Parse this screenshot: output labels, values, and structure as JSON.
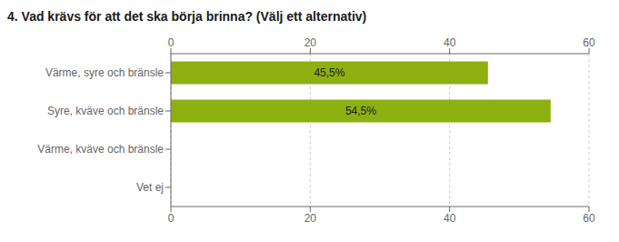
{
  "chart_data": {
    "type": "bar",
    "title": "4. Vad krävs för att det ska börja brinna? (Välj ett alternativ)",
    "orientation": "horizontal",
    "categories": [
      "Värme, syre och bränsle",
      "Syre, kväve och bränsle",
      "Värme, kväve och bränsle",
      "Vet ej"
    ],
    "values": [
      45.5,
      54.5,
      0,
      0
    ],
    "value_labels": [
      "45,5%",
      "54,5%",
      null,
      null
    ],
    "data_labels": true,
    "color": "#8db010",
    "xlim": [
      0,
      60
    ],
    "xticks": [
      0,
      20,
      40,
      60
    ],
    "grid": true
  }
}
